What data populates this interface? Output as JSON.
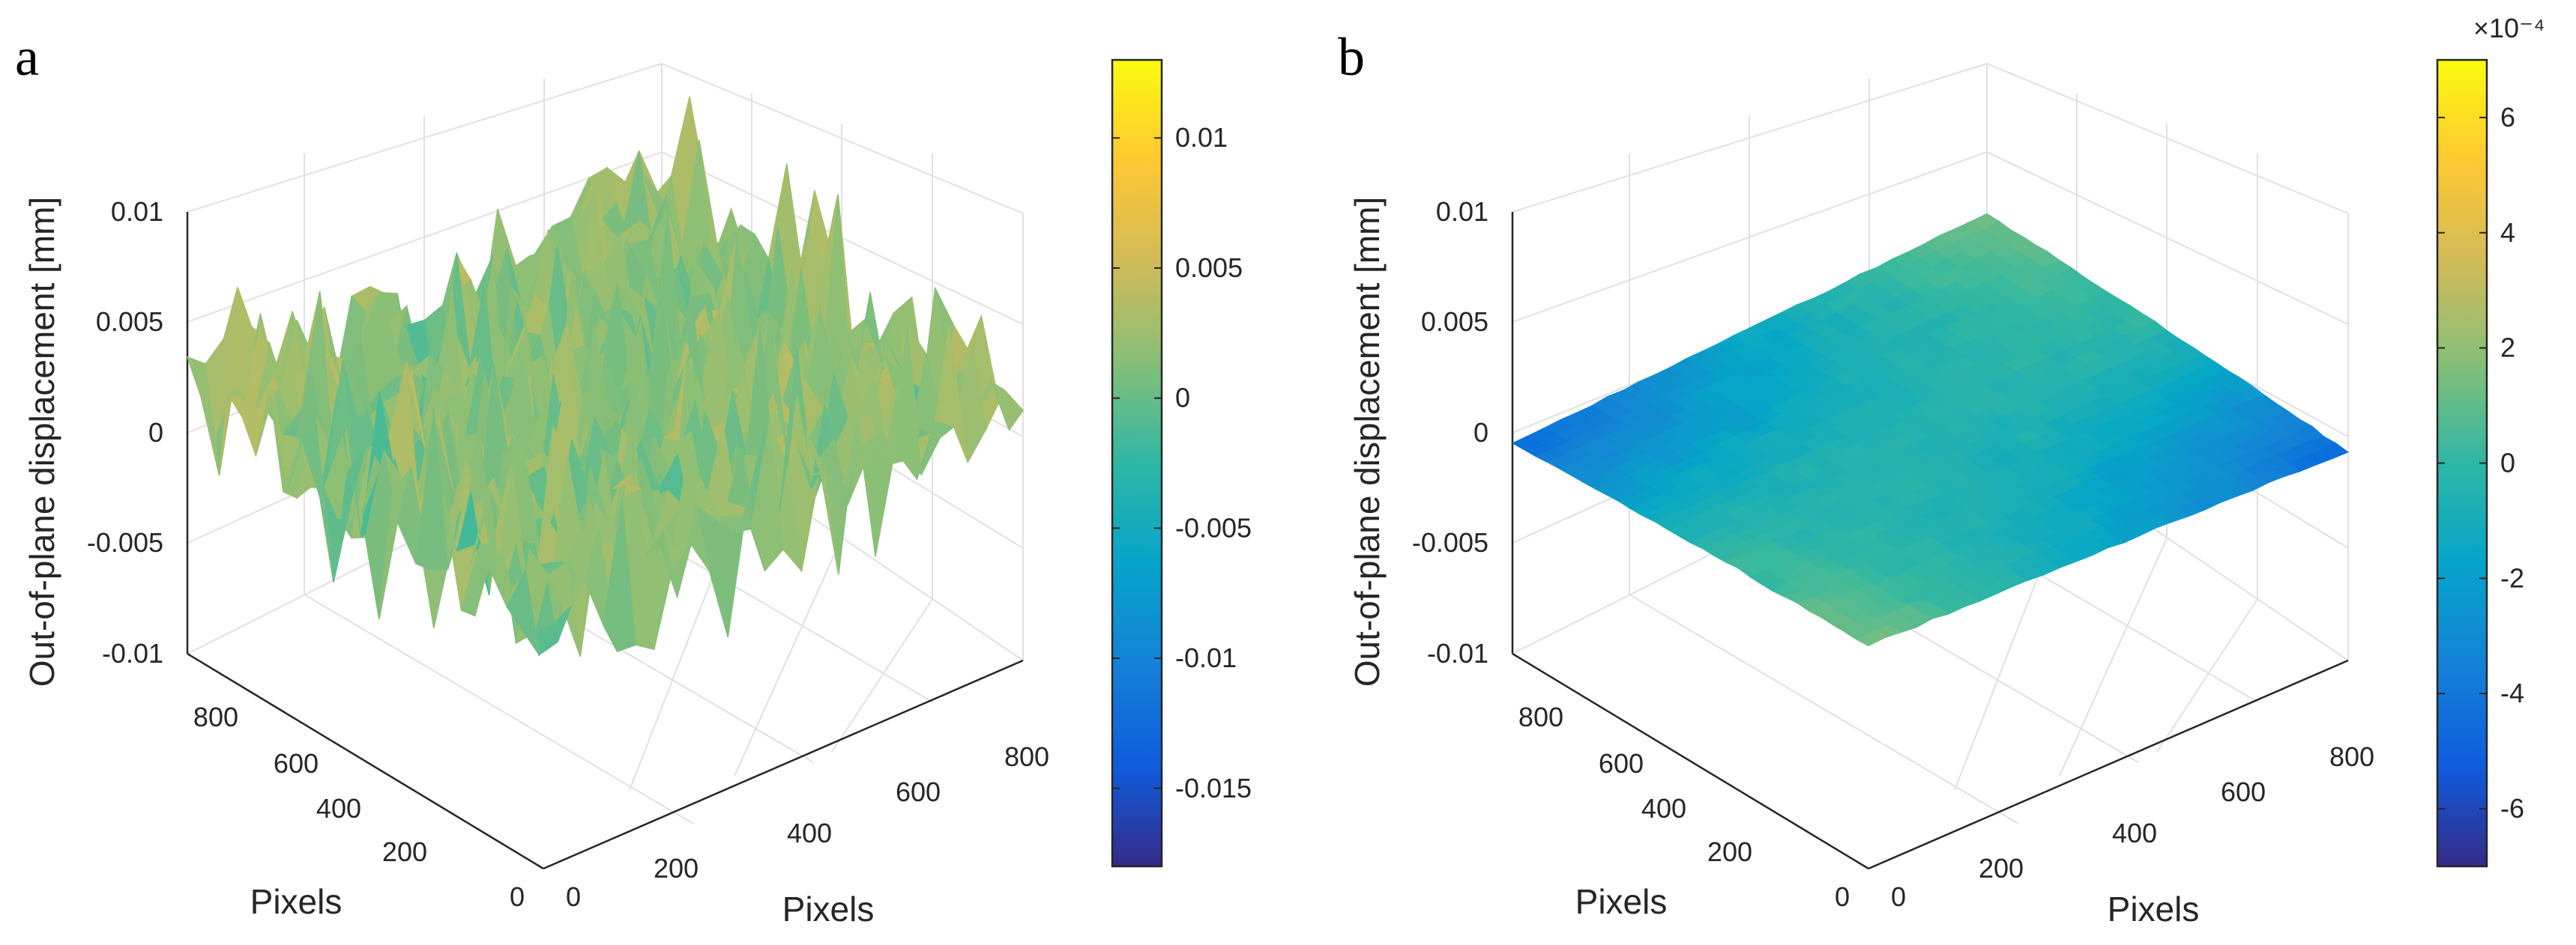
{
  "chart_data": [
    {
      "panel": "a",
      "type": "surface",
      "zlabel": "Out-of-plane displacement [mm]",
      "xlabel": "Pixels",
      "ylabel": "Pixels",
      "zlim": [
        -0.01,
        0.01
      ],
      "z_ticks": [
        "-0.01",
        "-0.005",
        "0",
        "0.005",
        "0.01"
      ],
      "left_ticks": [
        "0",
        "200",
        "400",
        "600",
        "800"
      ],
      "right_ticks": [
        "0",
        "200",
        "400",
        "600",
        "800"
      ],
      "colorbar": {
        "range": [
          -0.018,
          0.013
        ],
        "ticks": [
          "-0.015",
          "-0.01",
          "-0.005",
          "0",
          "0.005",
          "0.01"
        ],
        "exponent": ""
      },
      "surface_description": "noisy random surface, amplitude about ±0.01 mm"
    },
    {
      "panel": "b",
      "type": "surface",
      "zlabel": "Out-of-plane displacement [mm]",
      "xlabel": "Pixels",
      "ylabel": "Pixels",
      "zlim": [
        -0.01,
        0.01
      ],
      "z_ticks": [
        "-0.01",
        "-0.005",
        "0",
        "0.005",
        "0.01"
      ],
      "left_ticks": [
        "0",
        "200",
        "400",
        "600",
        "800"
      ],
      "right_ticks": [
        "0",
        "200",
        "400",
        "600",
        "800"
      ],
      "colorbar": {
        "range": [
          -7,
          7
        ],
        "ticks": [
          "-6",
          "-4",
          "-2",
          "0",
          "2",
          "4",
          "6"
        ],
        "exponent": "×10⁻⁴"
      },
      "surface_description": "smooth, nearly flat saddle-shaped surface, amplitude about ±6e-4 mm"
    }
  ],
  "colors": {
    "parula": [
      "#352a87",
      "#0363e1",
      "#1485d4",
      "#06a7c6",
      "#38b99e",
      "#92bf73",
      "#d9ba56",
      "#fcce2e",
      "#f9fb0e"
    ],
    "axis": "#262626",
    "grid": "#e0e0e0"
  }
}
